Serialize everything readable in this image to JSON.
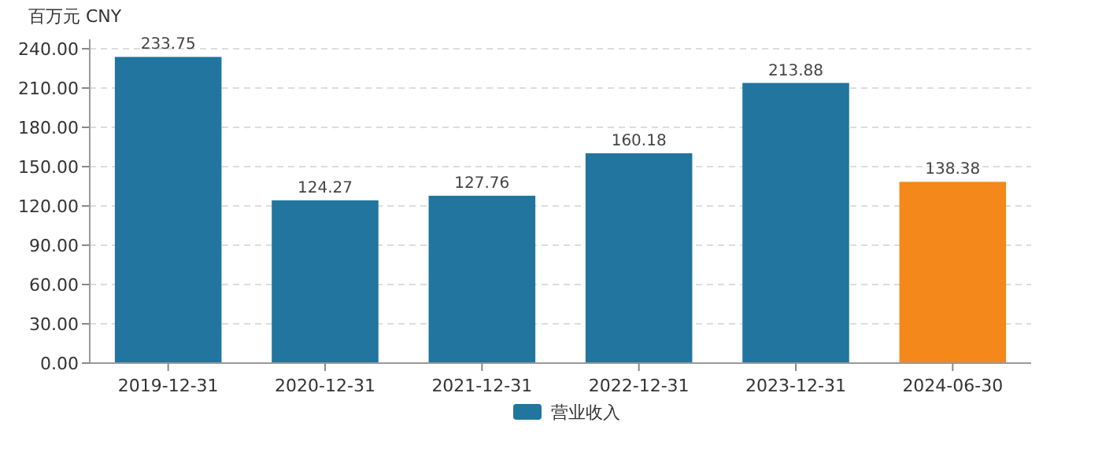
{
  "chart_data": {
    "type": "bar",
    "ylabel": "百万元  CNY",
    "categories": [
      "2019-12-31",
      "2020-12-31",
      "2021-12-31",
      "2022-12-31",
      "2023-12-31",
      "2024-06-30"
    ],
    "series": [
      {
        "name": "营业收入",
        "color": "#21759f",
        "colors": [
          "#21759f",
          "#21759f",
          "#21759f",
          "#21759f",
          "#21759f",
          "#f5881a"
        ],
        "values": [
          233.75,
          124.27,
          127.76,
          160.18,
          213.88,
          138.38
        ]
      }
    ],
    "ylim": [
      0,
      240
    ],
    "yticks": [
      {
        "value": 0,
        "label": "0.00"
      },
      {
        "value": 30,
        "label": "30.00"
      },
      {
        "value": 60,
        "label": "60.00"
      },
      {
        "value": 90,
        "label": "90.00"
      },
      {
        "value": 120,
        "label": "120.00"
      },
      {
        "value": 150,
        "label": "150.00"
      },
      {
        "value": 180,
        "label": "180.00"
      },
      {
        "value": 210,
        "label": "210.00"
      },
      {
        "value": 240,
        "label": "240.00"
      }
    ],
    "grid": "y",
    "legend": "bottom",
    "data_labels": true
  }
}
